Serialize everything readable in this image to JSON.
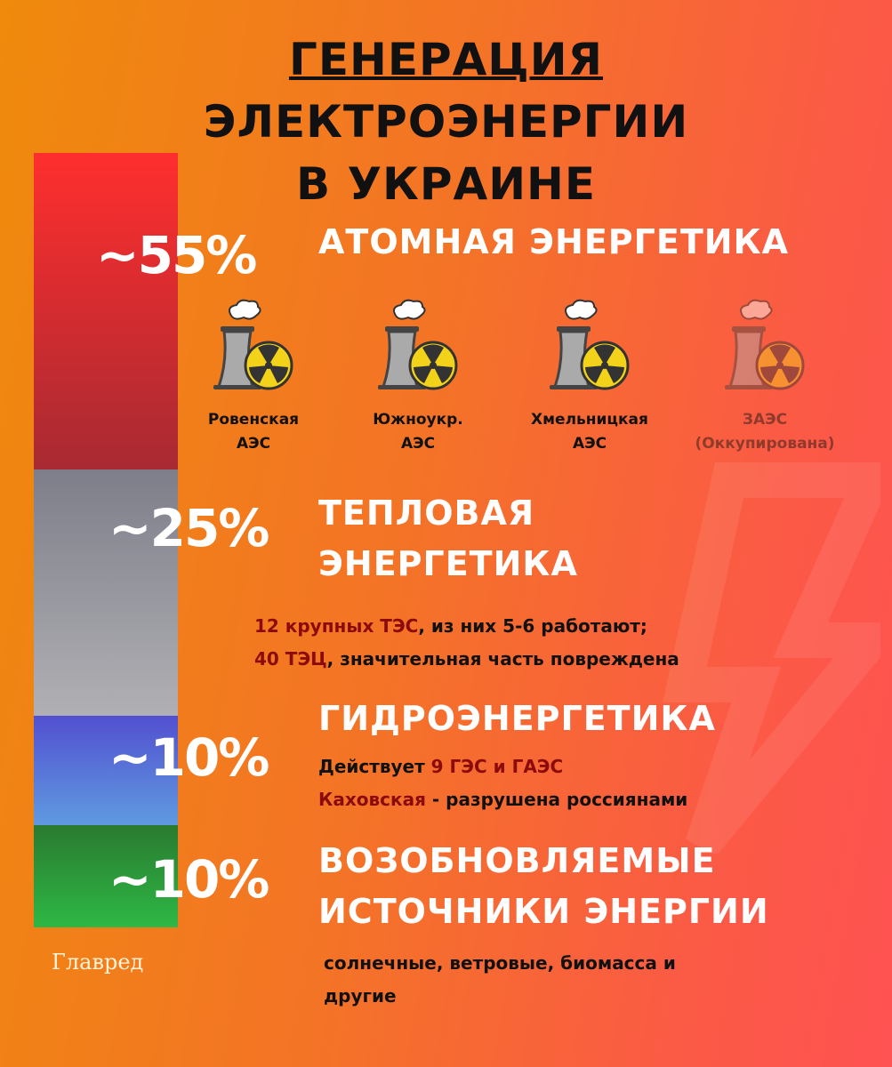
{
  "title": {
    "line1": "ГЕНЕРАЦИЯ",
    "line2": "ЭЛЕКТРОЭНЕРГИИ",
    "line3": "В УКРАИНЕ"
  },
  "chart_data": {
    "type": "bar",
    "stacked": true,
    "categories": [
      "Атомная энергетика",
      "Тепловая энергетика",
      "Гидроэнергетика",
      "Возобновляемые источники энергии"
    ],
    "values": [
      55,
      25,
      10,
      10
    ],
    "value_labels": [
      "~55%",
      "~25%",
      "~10%",
      "~10%"
    ],
    "colors": [
      "#d8262a",
      "#8e8e98",
      "#5a6ad0",
      "#2f9a3a"
    ]
  },
  "nuclear": {
    "pct": "~55%",
    "title": "АТОМНАЯ ЭНЕРГЕТИКА",
    "plants": [
      {
        "line1": "Ровенская",
        "line2": "АЭС",
        "occupied": false
      },
      {
        "line1": "Южноукр.",
        "line2": "АЭС",
        "occupied": false
      },
      {
        "line1": "Хмельницкая",
        "line2": "АЭС",
        "occupied": false
      },
      {
        "line1": "ЗАЭС",
        "line2": "(Оккупирована)",
        "occupied": true
      }
    ]
  },
  "thermal": {
    "pct": "~25%",
    "title1": "ТЕПЛОВАЯ",
    "title2": "ЭНЕРГЕТИКА",
    "l1a": "12 крупных ТЭС",
    "l1b": ", из них 5-6 работают;",
    "l2a": "40 ТЭЦ",
    "l2b": ", значительная часть повреждена"
  },
  "hydro": {
    "pct": "~10%",
    "title": "ГИДРОЭНЕРГЕТИКА",
    "l1a": "Действует ",
    "l1b": "9 ГЭС и ГАЭС",
    "l2a": "Каховская",
    "l2b": " - разрушена россиянами"
  },
  "renew": {
    "pct": "~10%",
    "title1": "ВОЗОБНОВЛЯЕМЫЕ",
    "title2": "ИСТОЧНИКИ ЭНЕРГИИ",
    "l1": "солнечные, ветровые, биомасса и",
    "l2": "другие"
  },
  "logo": "Главред"
}
